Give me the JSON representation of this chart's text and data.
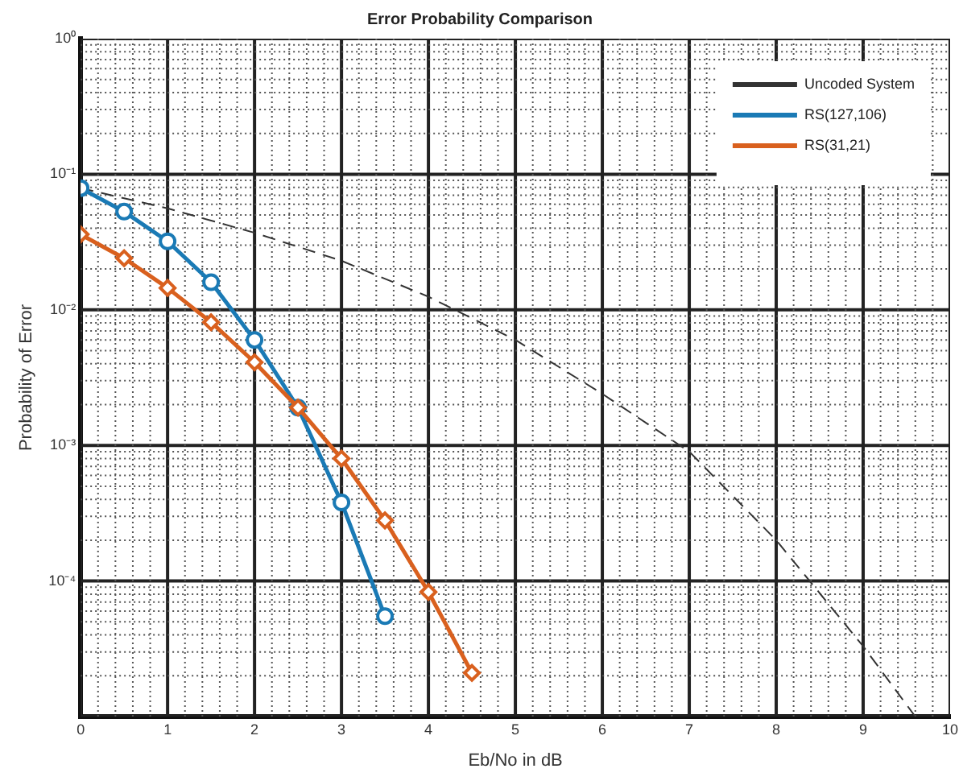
{
  "chart_data": {
    "type": "line",
    "title": "Error Probability Comparison",
    "xlabel": "Eb/No in dB",
    "ylabel": "Probability of Error",
    "log": "y",
    "grid": true,
    "legend": "top right",
    "xlim": [
      0,
      10
    ],
    "xticks": [
      0,
      1,
      2,
      3,
      4,
      5,
      6,
      7,
      8,
      9,
      10
    ],
    "ylim": [
      1e-05,
      1
    ],
    "yticks": [
      {
        "value": 1,
        "label": "10⁰"
      },
      {
        "value": 0.1,
        "label": "10⁻¹"
      },
      {
        "value": 0.01,
        "label": "10⁻²"
      },
      {
        "value": 0.001,
        "label": "10⁻³"
      },
      {
        "value": 0.0001,
        "label": "10⁻⁴"
      },
      {
        "value": 1e-05,
        "label": null
      }
    ],
    "series": [
      {
        "name": "Uncoded System",
        "color": "#333333",
        "line_style": "dashed",
        "marker": "none",
        "x": [
          0,
          1,
          2,
          3,
          4,
          5,
          6,
          7,
          8,
          9,
          9.6
        ],
        "values": [
          0.079,
          0.056,
          0.037,
          0.023,
          0.0125,
          0.006,
          0.0024,
          0.0009,
          0.0002,
          3.3e-05,
          1e-05
        ]
      },
      {
        "name": "RS(127,106)",
        "color": "#1a7ab5",
        "line_style": "solid",
        "marker": "circle",
        "x": [
          0,
          0.5,
          1,
          1.5,
          2,
          2.5,
          3,
          3.5
        ],
        "values": [
          0.079,
          0.053,
          0.032,
          0.016,
          0.006,
          0.0019,
          0.00038,
          5.5e-05
        ]
      },
      {
        "name": "RS(31,21)",
        "color": "#d9601e",
        "line_style": "solid",
        "marker": "diamond",
        "x": [
          0,
          0.5,
          1,
          1.5,
          2,
          2.5,
          3,
          3.5,
          4,
          4.5
        ],
        "values": [
          0.036,
          0.024,
          0.0145,
          0.0081,
          0.0041,
          0.0019,
          0.0008,
          0.00028,
          8.3e-05,
          2.1e-05
        ]
      }
    ]
  }
}
